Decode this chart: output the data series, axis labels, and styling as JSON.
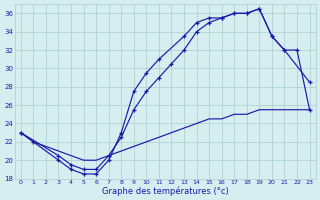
{
  "xlabel": "Graphe des températures (°c)",
  "bg_color": "#d6eef0",
  "grid_color": "#aacccc",
  "line_color": "#1a1aaa",
  "line1_x": [
    0,
    1,
    3,
    4,
    5,
    6,
    7,
    8,
    9,
    10,
    11,
    13,
    14,
    15,
    16,
    17,
    18,
    19,
    20,
    21,
    23
  ],
  "line1_y": [
    23.0,
    22.0,
    20.0,
    19.0,
    18.5,
    18.5,
    20.0,
    23.0,
    27.5,
    29.5,
    31.0,
    33.5,
    35.0,
    35.5,
    35.5,
    36.0,
    36.0,
    36.5,
    33.5,
    32.0,
    28.5
  ],
  "line2_x": [
    0,
    3,
    4,
    5,
    6,
    7,
    8,
    9,
    10,
    11,
    12,
    13,
    14,
    15,
    16,
    17,
    18,
    19,
    20,
    21,
    22,
    23
  ],
  "line2_y": [
    23.0,
    20.5,
    19.5,
    19.0,
    19.0,
    20.5,
    22.5,
    25.5,
    27.5,
    29.0,
    30.5,
    32.0,
    34.0,
    35.0,
    35.5,
    36.0,
    36.0,
    36.5,
    33.5,
    32.0,
    32.0,
    25.5
  ],
  "line3_x": [
    0,
    1,
    2,
    3,
    4,
    5,
    6,
    7,
    8,
    9,
    10,
    11,
    12,
    13,
    14,
    15,
    16,
    17,
    18,
    19,
    20,
    21,
    22,
    23
  ],
  "line3_y": [
    23.0,
    22.0,
    21.5,
    21.0,
    20.5,
    20.0,
    20.0,
    20.5,
    21.0,
    21.5,
    22.0,
    22.5,
    23.0,
    23.5,
    24.0,
    24.5,
    24.5,
    25.0,
    25.0,
    25.5,
    25.5,
    25.5,
    25.5,
    25.5
  ],
  "ylim": [
    18,
    37
  ],
  "yticks": [
    18,
    20,
    22,
    24,
    26,
    28,
    30,
    32,
    34,
    36
  ],
  "xticks": [
    0,
    1,
    2,
    3,
    4,
    5,
    6,
    7,
    8,
    9,
    10,
    11,
    12,
    13,
    14,
    15,
    16,
    17,
    18,
    19,
    20,
    21,
    22,
    23
  ]
}
